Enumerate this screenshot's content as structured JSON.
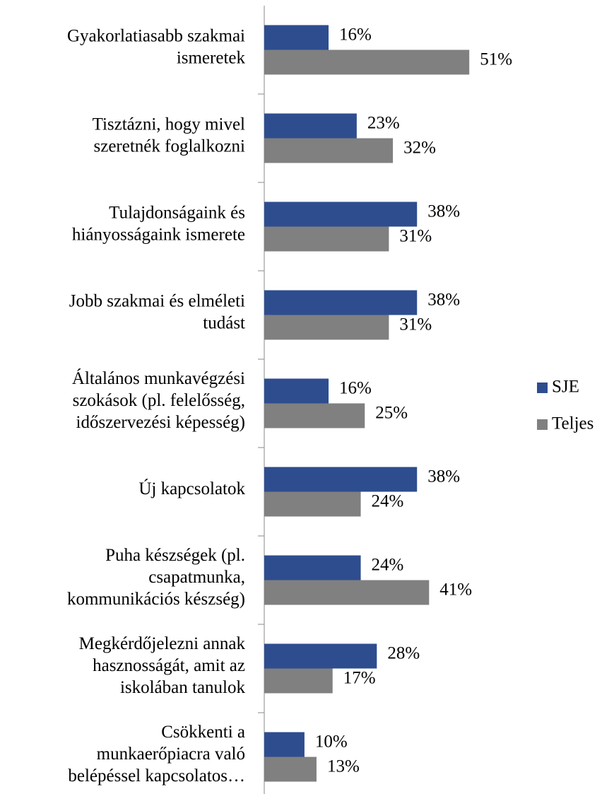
{
  "chart_data": {
    "type": "hbar",
    "categories": [
      [
        "Gyakorlatiasabb szakmai",
        "ismeretek"
      ],
      [
        "Tisztázni, hogy mivel",
        "szeretnék foglalkozni"
      ],
      [
        "Tulajdonságaink és",
        "hiányosságaink ismerete"
      ],
      [
        "Jobb szakmai és elméleti",
        "tudást"
      ],
      [
        "Általános munkavégzési",
        "szokások (pl. felelősség,",
        "időszervezési képesség)"
      ],
      [
        "Új kapcsolatok"
      ],
      [
        "Puha készségek (pl.",
        "csapatmunka,",
        "kommunikációs készség)"
      ],
      [
        "Megkérdőjelezni annak",
        "hasznosságát, amit az",
        "iskolában tanulok"
      ],
      [
        "Csökkenti a",
        "munkaerőpiacra való",
        "belépéssel kapcsolatos…"
      ]
    ],
    "series": [
      {
        "name": "SJE",
        "color": "#2e4d8f",
        "values": [
          16,
          23,
          38,
          38,
          16,
          38,
          24,
          28,
          10
        ],
        "value_labels": [
          "16%",
          "23%",
          "38%",
          "38%",
          "16%",
          "38%",
          "24%",
          "28%",
          "10%"
        ]
      },
      {
        "name": "Teljes",
        "color": "#808080",
        "values": [
          51,
          32,
          31,
          31,
          25,
          24,
          41,
          17,
          13
        ],
        "value_labels": [
          "51%",
          "32%",
          "31%",
          "31%",
          "25%",
          "24%",
          "41%",
          "17%",
          "13%"
        ]
      }
    ],
    "legend": "right"
  }
}
